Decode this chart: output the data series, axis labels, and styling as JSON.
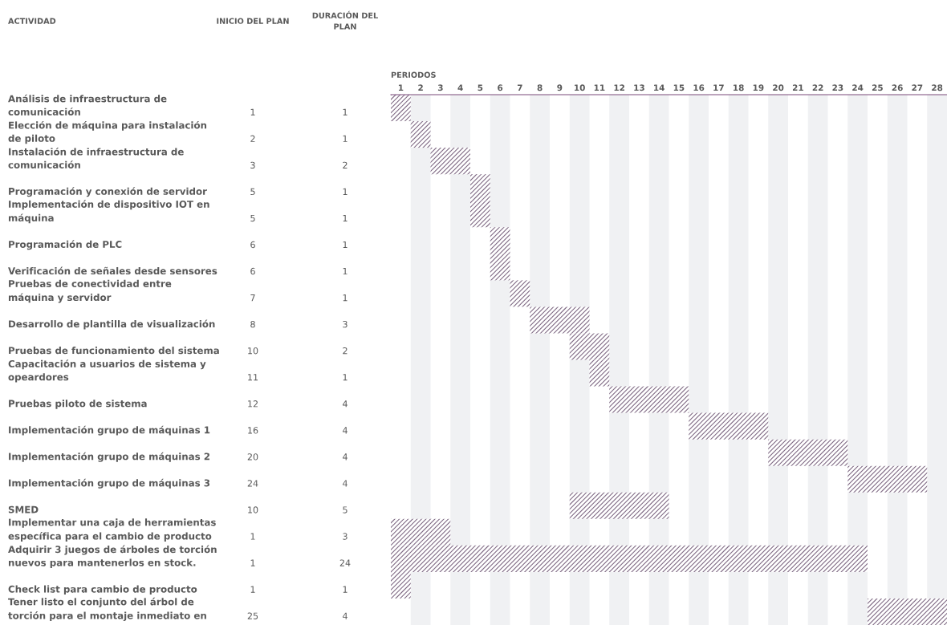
{
  "chart_data": {
    "type": "bar",
    "orientation": "horizontal",
    "x2label": "PERIODOS",
    "annotations": [
      "ACTIVIDAD",
      "INICIO DEL PLAN",
      "DURACIÓN DEL\nPLAN",
      "1",
      "2",
      "3",
      "5",
      "5",
      "6",
      "6",
      "7",
      "8",
      "10",
      "11",
      "12",
      "16",
      "20",
      "24",
      "10",
      "1",
      "1",
      "1",
      "25"
    ],
    "categories": [
      "Análisis de infraestructura de\ncomunicación",
      "Elección de máquina para instalación\nde piloto",
      "Instalación de infraestructura de\ncomunicación",
      "Programación y conexión de servidor",
      "Implementación de dispositivo IOT en\nmáquina",
      "Programación de PLC",
      "Verificación de señales desde sensores",
      "Pruebas de conectividad entre\nmáquina y servidor",
      "Desarrollo de plantilla de visualización",
      "Pruebas de funcionamiento del sistema",
      "Capacitación a usuarios de sistema y\nopeardores",
      "Pruebas piloto de sistema",
      "Implementación grupo de máquinas 1",
      "Implementación grupo de máquinas 2",
      "Implementación grupo de máquinas 3",
      "SMED",
      "Implementar una caja de herramientas\nespecífica para el cambio de producto",
      "Adquirir 3 juegos de árboles de torción\nnuevos para mantenerlos en stock.",
      "Check list para cambio de producto",
      "Tener listo el conjunto del árbol de\ntorción para el montaje inmediato en"
    ],
    "series": [
      {
        "color": "#7f6a84",
        "axis": "x2",
        "base": [
          0.5,
          1.5,
          2.5,
          4.5,
          4.5,
          5.5,
          5.5,
          6.5,
          7.5,
          9.5,
          10.5,
          11.5,
          15.5,
          19.5,
          23.5,
          9.5,
          0.5,
          0.5,
          0.5,
          24.5
        ],
        "values": [
          1,
          1,
          2,
          1,
          1,
          1,
          1,
          1,
          3,
          2,
          1,
          4,
          4,
          4,
          4,
          5,
          3,
          24,
          1,
          4
        ]
      }
    ],
    "data_labels": true,
    "x2lim": [
      0.5,
      28.5
    ],
    "x2ticks": [
      1,
      2,
      3,
      4,
      5,
      6,
      7,
      8,
      9,
      10,
      11,
      12,
      13,
      14,
      15,
      16,
      17,
      18,
      19,
      20,
      21,
      22,
      23,
      24,
      25,
      26,
      27,
      28
    ],
    "bands": [
      {
        "axis": "x2",
        "from": 1.5,
        "to": 2.5,
        "color": "#f0f1f3"
      },
      {
        "axis": "x2",
        "from": 3.5,
        "to": 4.5,
        "color": "#f0f1f3"
      },
      {
        "axis": "x2",
        "from": 5.5,
        "to": 6.5,
        "color": "#f0f1f3"
      },
      {
        "axis": "x2",
        "from": 7.5,
        "to": 8.5,
        "color": "#f0f1f3"
      },
      {
        "axis": "x2",
        "from": 9.5,
        "to": 10.5,
        "color": "#f0f1f3"
      },
      {
        "axis": "x2",
        "from": 11.5,
        "to": 12.5,
        "color": "#f0f1f3"
      },
      {
        "axis": "x2",
        "from": 13.5,
        "to": 14.5,
        "color": "#f0f1f3"
      },
      {
        "axis": "x2",
        "from": 15.5,
        "to": 16.5,
        "color": "#f0f1f3"
      },
      {
        "axis": "x2",
        "from": 17.5,
        "to": 18.5,
        "color": "#f0f1f3"
      },
      {
        "axis": "x2",
        "from": 19.5,
        "to": 20.5,
        "color": "#f0f1f3"
      },
      {
        "axis": "x2",
        "from": 21.5,
        "to": 22.5,
        "color": "#f0f1f3"
      },
      {
        "axis": "x2",
        "from": 23.5,
        "to": 24.5,
        "color": "#f0f1f3"
      },
      {
        "axis": "x2",
        "from": 25.5,
        "to": 26.5,
        "color": "#f0f1f3"
      },
      {
        "axis": "x2",
        "from": 27.5,
        "to": 28.5,
        "color": "#f0f1f3"
      }
    ],
    "grid": false,
    "legend": false
  }
}
